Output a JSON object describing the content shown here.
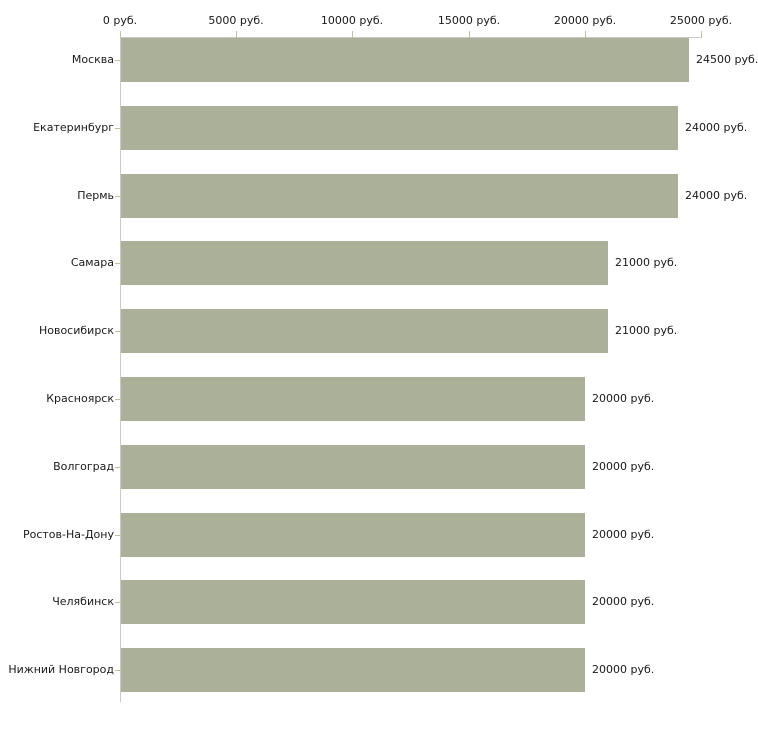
{
  "chart_data": {
    "type": "bar",
    "orientation": "horizontal",
    "title": "",
    "xlabel": "",
    "ylabel": "",
    "xlim": [
      0,
      25000
    ],
    "x_tick_values": [
      0,
      5000,
      10000,
      15000,
      20000,
      25000
    ],
    "x_tick_labels": [
      "0 руб.",
      "5000 руб.",
      "10000 руб.",
      "15000 руб.",
      "20000 руб.",
      "25000 руб."
    ],
    "categories": [
      "Москва",
      "Екатеринбург",
      "Пермь",
      "Самара",
      "Новосибирск",
      "Красноярск",
      "Волгоград",
      "Ростов-На-Дону",
      "Челябинск",
      "Нижний Новгород"
    ],
    "values": [
      24500,
      24000,
      24000,
      21000,
      21000,
      20000,
      20000,
      20000,
      20000,
      20000
    ],
    "value_labels": [
      "24500 руб.",
      "24000 руб.",
      "24000 руб.",
      "21000 руб.",
      "21000 руб.",
      "20000 руб.",
      "20000 руб.",
      "20000 руб.",
      "20000 руб.",
      "20000 руб."
    ],
    "grid": false,
    "legend": false,
    "colors": {
      "bar": "#abb199",
      "axis_line": "#c9c9c9",
      "tick": "#c3c194",
      "text": "#1a1a1a",
      "background": "#ffffff"
    }
  }
}
